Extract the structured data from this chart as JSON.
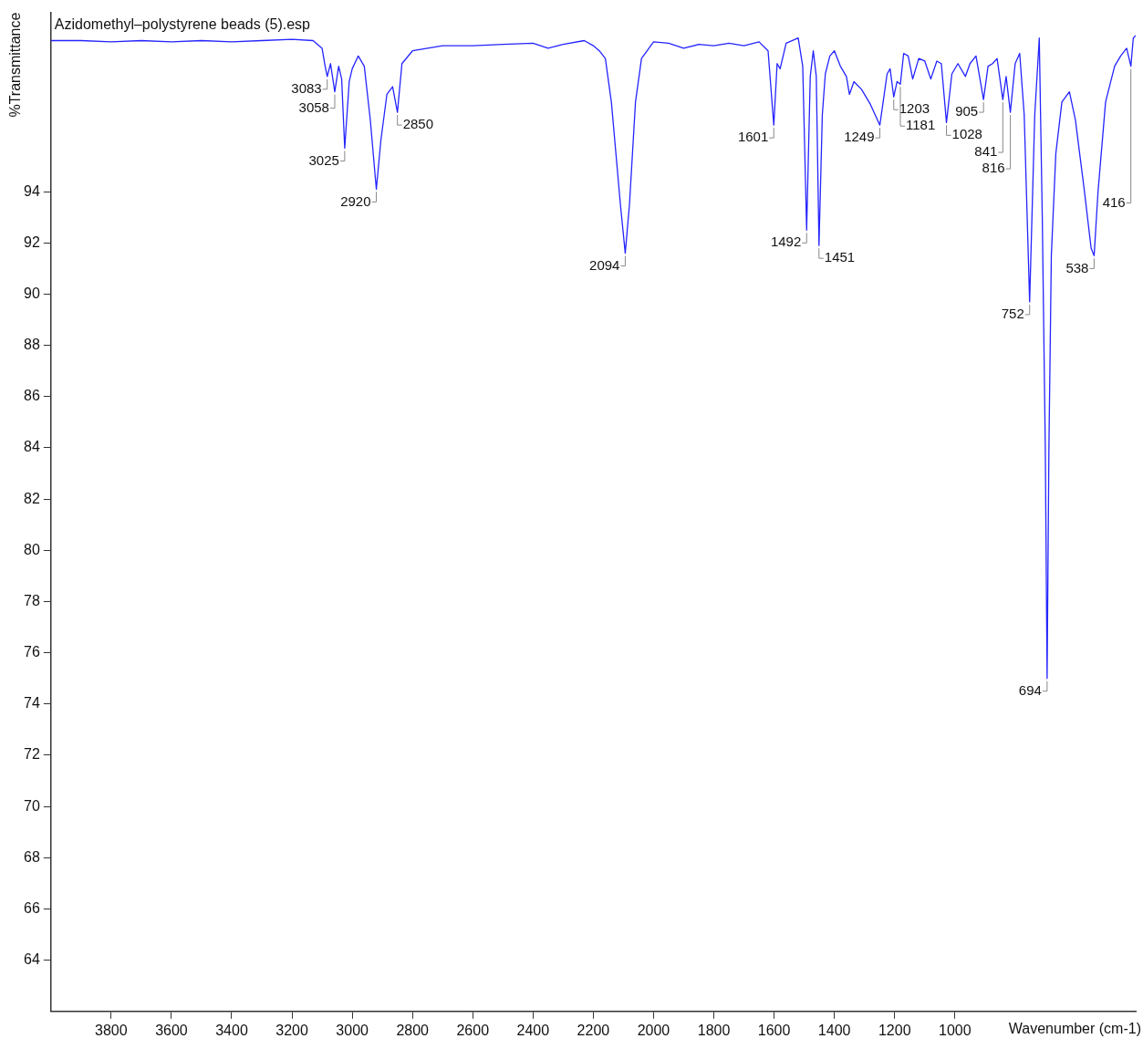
{
  "chart_data": {
    "type": "line",
    "title": "Azidomethyl–polystyrene beads (5).esp",
    "xlabel": "Wavenumber (cm-1)",
    "ylabel": "%Transmittance",
    "xlim": [
      4000,
      400
    ],
    "ylim": [
      62,
      101
    ],
    "xticks": [
      3800,
      3600,
      3400,
      3200,
      3000,
      2800,
      2600,
      2400,
      2200,
      2000,
      1800,
      1600,
      1400,
      1200,
      1000
    ],
    "yticks": [
      64,
      66,
      68,
      70,
      72,
      74,
      76,
      78,
      80,
      82,
      84,
      86,
      88,
      90,
      92,
      94
    ],
    "grid": false,
    "legend": false,
    "marker": "none",
    "line_style": "solid",
    "series": [
      {
        "color": "#2424ff",
        "x": [
          4000,
          3900,
          3800,
          3700,
          3600,
          3500,
          3400,
          3300,
          3200,
          3130,
          3100,
          3090,
          3083,
          3072,
          3058,
          3045,
          3035,
          3025,
          3010,
          3000,
          2980,
          2960,
          2940,
          2920,
          2905,
          2885,
          2866,
          2850,
          2835,
          2800,
          2700,
          2600,
          2500,
          2400,
          2350,
          2300,
          2230,
          2200,
          2180,
          2160,
          2140,
          2110,
          2094,
          2080,
          2060,
          2040,
          2000,
          1950,
          1900,
          1850,
          1800,
          1750,
          1700,
          1650,
          1620,
          1601,
          1590,
          1580,
          1560,
          1520,
          1505,
          1492,
          1480,
          1470,
          1460,
          1451,
          1440,
          1430,
          1415,
          1400,
          1380,
          1360,
          1350,
          1335,
          1310,
          1280,
          1249,
          1225,
          1215,
          1203,
          1192,
          1181,
          1170,
          1155,
          1140,
          1120,
          1100,
          1080,
          1060,
          1045,
          1028,
          1010,
          990,
          965,
          950,
          930,
          905,
          890,
          875,
          860,
          841,
          830,
          816,
          800,
          785,
          770,
          752,
          735,
          720,
          710,
          700,
          694,
          688,
          680,
          665,
          645,
          620,
          600,
          570,
          548,
          538,
          525,
          500,
          470,
          450,
          430,
          416,
          408,
          400
        ],
        "values": [
          99.9,
          99.9,
          99.85,
          99.9,
          99.85,
          99.9,
          99.85,
          99.9,
          99.95,
          99.9,
          99.6,
          98.9,
          98.5,
          99.0,
          97.9,
          98.9,
          98.4,
          95.7,
          98.3,
          98.8,
          99.3,
          98.9,
          96.8,
          94.1,
          96.0,
          97.8,
          98.1,
          97.1,
          99.0,
          99.5,
          99.7,
          99.7,
          99.75,
          99.8,
          99.6,
          99.75,
          99.9,
          99.7,
          99.5,
          99.2,
          97.5,
          93.5,
          91.6,
          93.5,
          97.5,
          99.2,
          99.85,
          99.8,
          99.6,
          99.75,
          99.7,
          99.8,
          99.7,
          99.85,
          99.5,
          96.6,
          99.0,
          98.8,
          99.8,
          100.0,
          98.9,
          92.5,
          98.5,
          99.5,
          98.5,
          91.9,
          97.0,
          98.6,
          99.3,
          99.5,
          98.9,
          98.5,
          97.8,
          98.3,
          98.0,
          97.4,
          96.6,
          98.6,
          98.8,
          97.7,
          98.3,
          98.2,
          99.4,
          99.3,
          98.4,
          99.2,
          99.1,
          98.4,
          99.1,
          99.0,
          96.7,
          98.6,
          99.0,
          98.5,
          99.0,
          99.3,
          97.6,
          98.9,
          99.0,
          99.2,
          97.6,
          98.5,
          97.1,
          99.0,
          99.4,
          97.0,
          89.7,
          97.0,
          100.0,
          93.0,
          84.0,
          75.0,
          84.0,
          91.5,
          95.5,
          97.5,
          97.9,
          96.8,
          94.0,
          91.8,
          91.5,
          94.0,
          97.5,
          98.9,
          99.3,
          99.6,
          98.9,
          100.0,
          100.1
        ]
      }
    ],
    "annotations": [
      {
        "text": "3083",
        "x": 3083,
        "y": 98.5
      },
      {
        "text": "3058",
        "x": 3058,
        "y": 97.9
      },
      {
        "text": "3025",
        "x": 3025,
        "y": 95.7
      },
      {
        "text": "2920",
        "x": 2920,
        "y": 94.1
      },
      {
        "text": "2850",
        "x": 2850,
        "y": 97.1
      },
      {
        "text": "2094",
        "x": 2094,
        "y": 91.6
      },
      {
        "text": "1601",
        "x": 1601,
        "y": 96.6
      },
      {
        "text": "1492",
        "x": 1492,
        "y": 92.5
      },
      {
        "text": "1451",
        "x": 1451,
        "y": 91.9
      },
      {
        "text": "1249",
        "x": 1249,
        "y": 96.6
      },
      {
        "text": "1203",
        "x": 1203,
        "y": 97.7
      },
      {
        "text": "1181",
        "x": 1181,
        "y": 98.2
      },
      {
        "text": "1028",
        "x": 1028,
        "y": 96.7
      },
      {
        "text": "905",
        "x": 905,
        "y": 97.6
      },
      {
        "text": "841",
        "x": 841,
        "y": 97.6
      },
      {
        "text": "816",
        "x": 816,
        "y": 97.1
      },
      {
        "text": "752",
        "x": 752,
        "y": 89.7
      },
      {
        "text": "694",
        "x": 694,
        "y": 75.0
      },
      {
        "text": "538",
        "x": 538,
        "y": 91.5
      },
      {
        "text": "416",
        "x": 416,
        "y": 98.9
      }
    ]
  }
}
